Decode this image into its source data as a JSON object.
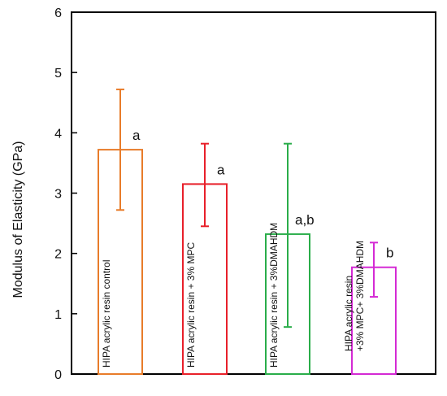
{
  "chart_data": {
    "type": "bar",
    "ylabel": "Modulus of Elasticity (GPa)",
    "ylim": [
      0,
      6
    ],
    "yticks": [
      0,
      1,
      2,
      3,
      4,
      5,
      6
    ],
    "categories": [
      [
        "HIPA acrylic resin control"
      ],
      [
        "HIPA acrylic resin + 3% MPC"
      ],
      [
        "HIPA acrylic resin + 3%DMAHDM"
      ],
      [
        "HIPA acrylic resin",
        "+3% MPC+ 3%DMAHDM"
      ]
    ],
    "values": [
      3.72,
      3.15,
      2.32,
      1.77
    ],
    "error_low": [
      2.72,
      2.45,
      0.78,
      1.28
    ],
    "error_high": [
      4.72,
      3.82,
      3.82,
      2.18
    ],
    "significance": [
      "a",
      "a",
      "a,b",
      "b"
    ],
    "colors": [
      "#e87c2a",
      "#e8202a",
      "#2aad4a",
      "#d42ad4"
    ],
    "grid": false,
    "legend": "none"
  }
}
